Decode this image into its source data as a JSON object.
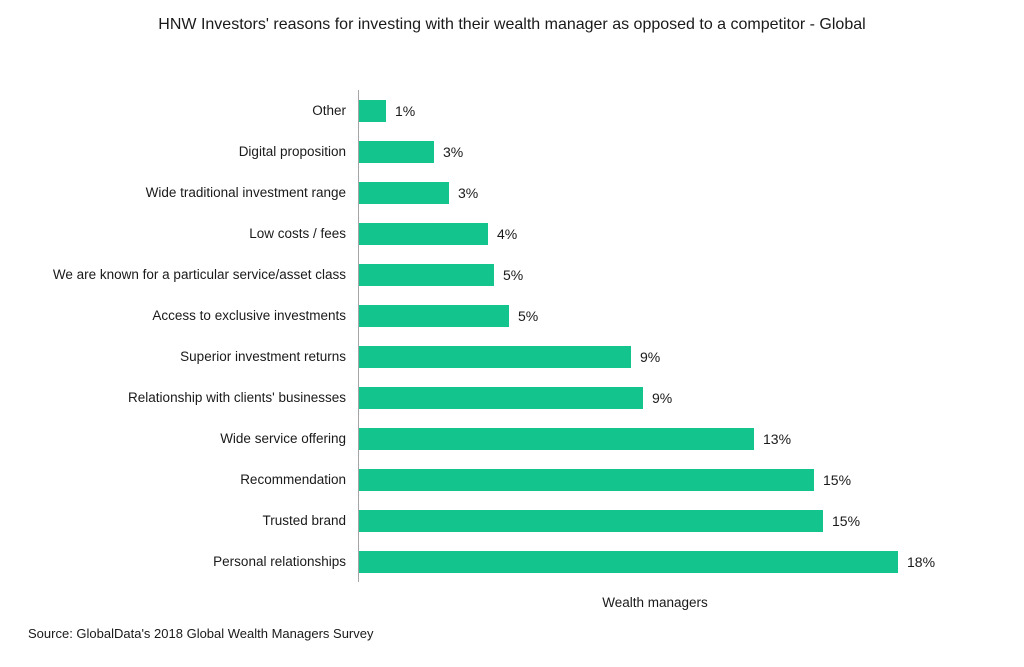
{
  "title": {
    "text": "HNW Investors' reasons for investing with their wealth manager as opposed to a competitor - Global"
  },
  "source": {
    "text": "Source: GlobalData's 2018 Global Wealth Managers Survey"
  },
  "chart_data": {
    "type": "bar",
    "orientation": "horizontal",
    "title": "HNW Investors' reasons for investing with their wealth manager as opposed to a competitor - Global",
    "xlabel": "Wealth managers",
    "ylabel": "",
    "legend": "none",
    "grid": false,
    "value_label_position": "outside-end",
    "xlim": [
      0,
      18
    ],
    "categories": [
      "Other",
      "Digital proposition",
      "Wide traditional investment range",
      "Low costs / fees",
      "We are known for a particular service/asset class",
      "Access to exclusive investments",
      "Superior investment returns",
      "Relationship with clients' businesses",
      "Wide service offering",
      "Recommendation",
      "Trusted brand",
      "Personal relationships"
    ],
    "values": [
      1,
      3,
      3,
      4,
      5,
      5,
      9,
      9,
      13,
      15,
      15,
      18
    ],
    "value_labels": [
      "1%",
      "3%",
      "3%",
      "4%",
      "5%",
      "5%",
      "9%",
      "9%",
      "13%",
      "15%",
      "15%",
      "18%"
    ],
    "bar_lengths_pct": [
      0.9,
      2.5,
      3.0,
      4.3,
      4.5,
      5.0,
      9.1,
      9.5,
      13.2,
      15.2,
      15.5,
      18.0
    ],
    "bar_color": "#14c48d",
    "axis_color": "#a6a6a6",
    "text_color": "#1a1a1a"
  }
}
